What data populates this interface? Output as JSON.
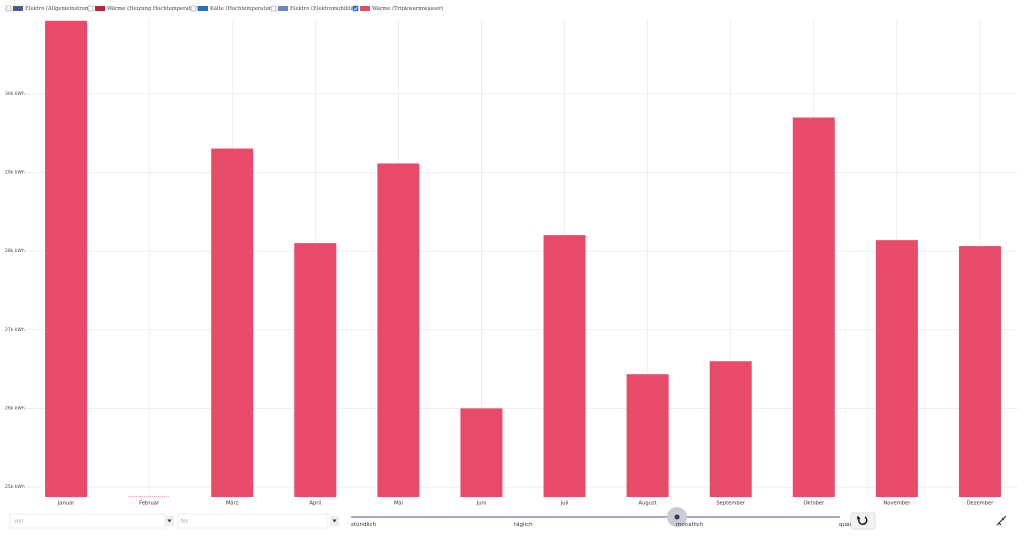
{
  "legend_items": [
    {
      "name": "Elektro (Allgemeinstrom)",
      "color": "#4b5e88",
      "checked": false
    },
    {
      "name": "Wärme (Heizung Hochtemperatur)",
      "color": "#c21f3a",
      "checked": false
    },
    {
      "name": "Kälte (Hochtemperatur)",
      "color": "#1b73c2",
      "checked": false
    },
    {
      "name": "Elektro (Elektromobilität)",
      "color": "#6f87b2",
      "checked": false
    },
    {
      "name": "Wärme (Trinkwarmwasser)",
      "color": "#e84a6a",
      "checked": true
    }
  ],
  "chart_data": {
    "type": "bar",
    "color": "#e84a6a",
    "grid": true,
    "categories": [
      "Januar",
      "Februar",
      "März",
      "April",
      "Mai",
      "Juni",
      "Juli",
      "August",
      "September",
      "Oktober",
      "November",
      "Dezember"
    ],
    "values": [
      30930,
      null,
      29305,
      28102,
      29115,
      26000,
      28204,
      26435,
      26600,
      29700,
      28140,
      28064
    ],
    "ylim": [
      24873,
      30940
    ],
    "yticks": [
      {
        "value": 25000,
        "label": "25k kWh"
      },
      {
        "value": 26000,
        "label": "26k kWh"
      },
      {
        "value": 27000,
        "label": "27k kWh"
      },
      {
        "value": 28000,
        "label": "28k kWh"
      },
      {
        "value": 29000,
        "label": "29k kWh"
      },
      {
        "value": 30000,
        "label": "30k kWh"
      }
    ]
  },
  "controls": {
    "from_label": "von",
    "to_label": "bis",
    "resolutions": [
      "stündlich",
      "täglich",
      "monatlich",
      "quar"
    ]
  }
}
